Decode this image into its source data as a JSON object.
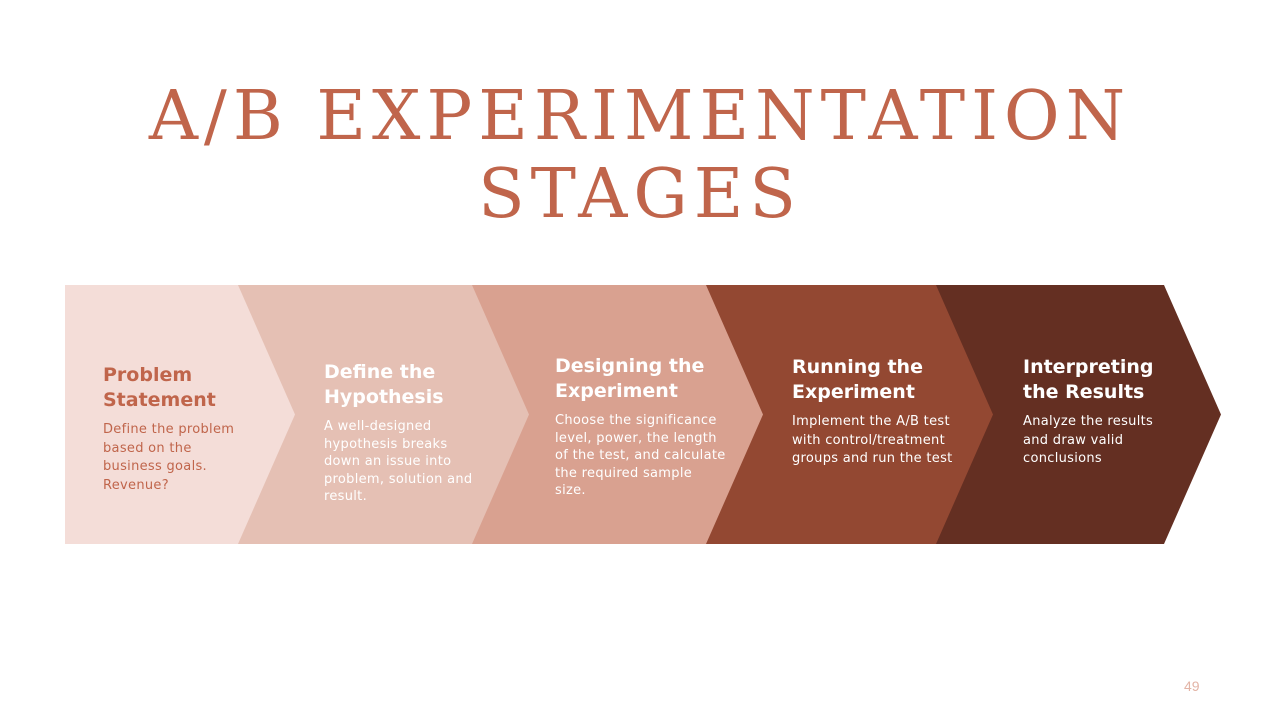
{
  "slide": {
    "title_line1": "A/B EXPERIMENTATION",
    "title_line2": "STAGES",
    "page_number": "49"
  },
  "stages": [
    {
      "title": "Problem Statement",
      "title_line1": "Problem",
      "title_line2": "Statement",
      "description": "Define the problem based on the business goals. Revenue?",
      "fill_color": "#f4ddd8",
      "text_color": "#c0654b"
    },
    {
      "title": "Define the Hypothesis",
      "title_line1": "Define the",
      "title_line2": "Hypothesis",
      "description": "A well-designed hypothesis breaks down an issue into problem, solution and result.",
      "fill_color": "#e5c0b4",
      "text_color": "#ffffff"
    },
    {
      "title": "Designing the Experiment",
      "title_line1": "Designing the",
      "title_line2": "Experiment",
      "description": "Choose the significance level, power, the length of the test, and calculate the required sample size.",
      "fill_color": "#d9a190",
      "text_color": "#ffffff"
    },
    {
      "title": "Running the Experiment",
      "title_line1": "Running the",
      "title_line2": "Experiment",
      "description": "Implement the A/B test with control/treatment groups and run the test",
      "fill_color": "#934832",
      "text_color": "#ffffff"
    },
    {
      "title": "Interpreting the Results",
      "title_line1": "Interpreting",
      "title_line2": "the Results",
      "description": "Analyze the results and draw valid conclusions",
      "fill_color": "#642f22",
      "text_color": "#ffffff"
    }
  ]
}
